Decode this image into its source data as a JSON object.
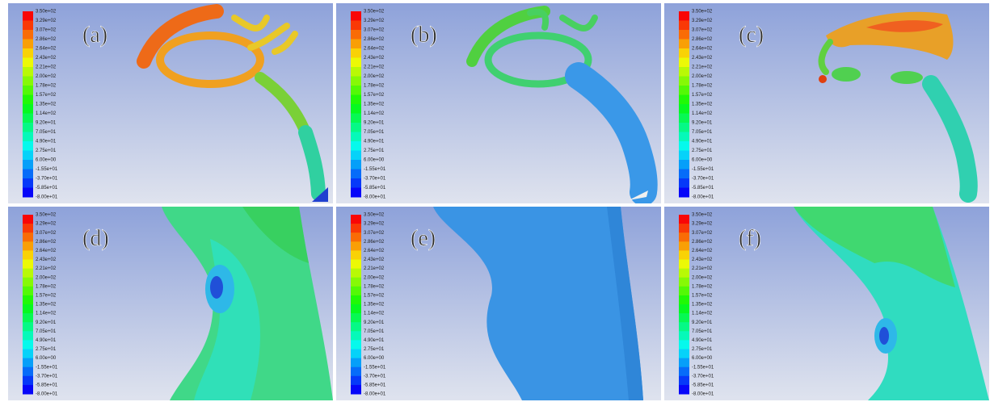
{
  "colorbar": {
    "labels": [
      "3.50e+02",
      "3.29e+02",
      "3.07e+02",
      "2.86e+02",
      "2.64e+02",
      "2.43e+02",
      "2.21e+02",
      "2.00e+02",
      "1.78e+02",
      "1.57e+02",
      "1.35e+02",
      "1.14e+02",
      "9.20e+01",
      "7.05e+01",
      "4.90e+01",
      "2.75e+01",
      "6.00e+00",
      "-1.55e+01",
      "-3.70e+01",
      "-5.85e+01",
      "-8.00e+01"
    ]
  },
  "panels": [
    {
      "label": "(a)"
    },
    {
      "label": "(b)"
    },
    {
      "label": "(c)"
    },
    {
      "label": "(d)"
    },
    {
      "label": "(e)"
    },
    {
      "label": "(f)"
    }
  ]
}
